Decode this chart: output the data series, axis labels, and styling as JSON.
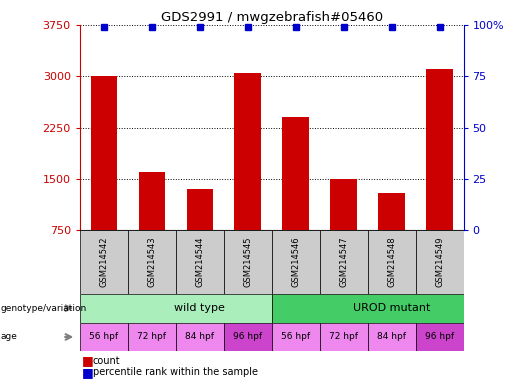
{
  "title": "GDS2991 / mwgzebrafish#05460",
  "samples": [
    "GSM214542",
    "GSM214543",
    "GSM214544",
    "GSM214545",
    "GSM214546",
    "GSM214547",
    "GSM214548",
    "GSM214549"
  ],
  "counts": [
    3000,
    1600,
    1350,
    3050,
    2400,
    1500,
    1300,
    3100
  ],
  "ylim_left": [
    750,
    3750
  ],
  "ylim_right": [
    0,
    100
  ],
  "yticks_left": [
    750,
    1500,
    2250,
    3000,
    3750
  ],
  "yticks_right": [
    0,
    25,
    50,
    75,
    100
  ],
  "bar_color": "#cc0000",
  "dot_color": "#0000cc",
  "left_axis_color": "#cc0000",
  "right_axis_color": "#0000cc",
  "genotype_groups": [
    {
      "label": "wild type",
      "start": 0,
      "end": 4,
      "color": "#aaeebb"
    },
    {
      "label": "UROD mutant",
      "start": 4,
      "end": 8,
      "color": "#44cc66"
    }
  ],
  "age_labels": [
    "56 hpf",
    "72 hpf",
    "84 hpf",
    "96 hpf",
    "56 hpf",
    "72 hpf",
    "84 hpf",
    "96 hpf"
  ],
  "age_colors": [
    "#ee88ee",
    "#ee88ee",
    "#ee88ee",
    "#cc44cc",
    "#ee88ee",
    "#ee88ee",
    "#ee88ee",
    "#cc44cc"
  ],
  "sample_box_color": "#cccccc",
  "legend_items": [
    {
      "label": "count",
      "color": "#cc0000"
    },
    {
      "label": "percentile rank within the sample",
      "color": "#0000cc"
    }
  ]
}
